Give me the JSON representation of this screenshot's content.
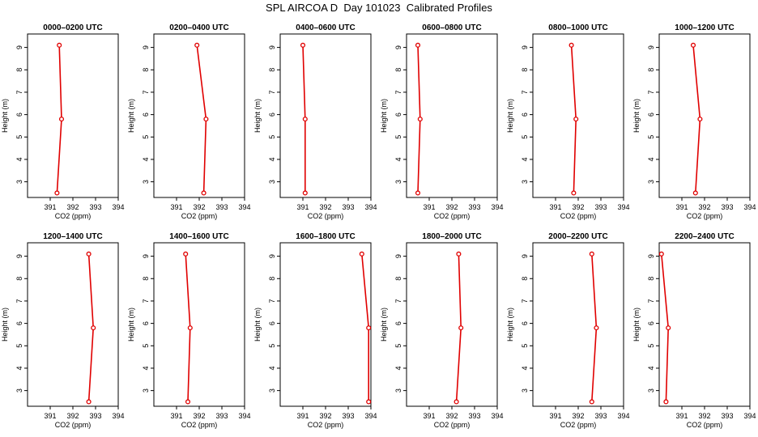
{
  "figure": {
    "title": "SPL AIRCOA D  Day 101023  Calibrated Profiles"
  },
  "style": {
    "line_color": "#e00000",
    "axis_color": "#000000",
    "background": "#ffffff"
  },
  "chart_data": [
    {
      "type": "line",
      "title": "0000–0200 UTC",
      "xlabel": "CO2 (ppm)",
      "ylabel": "Height (m)",
      "xlim": [
        390,
        394
      ],
      "ylim": [
        2.3,
        9.6
      ],
      "xticks": [
        391,
        392,
        393,
        394
      ],
      "yticks": [
        3,
        4,
        5,
        6,
        7,
        8,
        9
      ],
      "grid": false,
      "series": [
        {
          "x": [
            391.3,
            391.5,
            391.4
          ],
          "y": [
            2.5,
            5.8,
            9.1
          ]
        }
      ]
    },
    {
      "type": "line",
      "title": "0200–0400 UTC",
      "xlabel": "CO2 (ppm)",
      "ylabel": "Height (m)",
      "xlim": [
        390,
        394
      ],
      "ylim": [
        2.3,
        9.6
      ],
      "xticks": [
        391,
        392,
        393,
        394
      ],
      "yticks": [
        3,
        4,
        5,
        6,
        7,
        8,
        9
      ],
      "grid": false,
      "series": [
        {
          "x": [
            392.2,
            392.3,
            391.9
          ],
          "y": [
            2.5,
            5.8,
            9.1
          ]
        }
      ]
    },
    {
      "type": "line",
      "title": "0400–0600 UTC",
      "xlabel": "CO2 (ppm)",
      "ylabel": "Height (m)",
      "xlim": [
        390,
        394
      ],
      "ylim": [
        2.3,
        9.6
      ],
      "xticks": [
        391,
        392,
        393,
        394
      ],
      "yticks": [
        3,
        4,
        5,
        6,
        7,
        8,
        9
      ],
      "grid": false,
      "series": [
        {
          "x": [
            391.1,
            391.1,
            391.0
          ],
          "y": [
            2.5,
            5.8,
            9.1
          ]
        }
      ]
    },
    {
      "type": "line",
      "title": "0600–0800 UTC",
      "xlabel": "CO2 (ppm)",
      "ylabel": "Height (m)",
      "xlim": [
        390,
        394
      ],
      "ylim": [
        2.3,
        9.6
      ],
      "xticks": [
        391,
        392,
        393,
        394
      ],
      "yticks": [
        3,
        4,
        5,
        6,
        7,
        8,
        9
      ],
      "grid": false,
      "series": [
        {
          "x": [
            390.5,
            390.6,
            390.5
          ],
          "y": [
            2.5,
            5.8,
            9.1
          ]
        }
      ]
    },
    {
      "type": "line",
      "title": "0800–1000 UTC",
      "xlabel": "CO2 (ppm)",
      "ylabel": "Height (m)",
      "xlim": [
        390,
        394
      ],
      "ylim": [
        2.3,
        9.6
      ],
      "xticks": [
        391,
        392,
        393,
        394
      ],
      "yticks": [
        3,
        4,
        5,
        6,
        7,
        8,
        9
      ],
      "grid": false,
      "series": [
        {
          "x": [
            391.8,
            391.9,
            391.7
          ],
          "y": [
            2.5,
            5.8,
            9.1
          ]
        }
      ]
    },
    {
      "type": "line",
      "title": "1000–1200 UTC",
      "xlabel": "CO2 (ppm)",
      "ylabel": "Height (m)",
      "xlim": [
        390,
        394
      ],
      "ylim": [
        2.3,
        9.6
      ],
      "xticks": [
        391,
        392,
        393,
        394
      ],
      "yticks": [
        3,
        4,
        5,
        6,
        7,
        8,
        9
      ],
      "grid": false,
      "series": [
        {
          "x": [
            391.6,
            391.8,
            391.5
          ],
          "y": [
            2.5,
            5.8,
            9.1
          ]
        }
      ]
    },
    {
      "type": "line",
      "title": "1200–1400 UTC",
      "xlabel": "CO2 (ppm)",
      "ylabel": "Height (m)",
      "xlim": [
        390,
        394
      ],
      "ylim": [
        2.3,
        9.6
      ],
      "xticks": [
        391,
        392,
        393,
        394
      ],
      "yticks": [
        3,
        4,
        5,
        6,
        7,
        8,
        9
      ],
      "grid": false,
      "series": [
        {
          "x": [
            392.7,
            392.9,
            392.7
          ],
          "y": [
            2.5,
            5.8,
            9.1
          ]
        }
      ]
    },
    {
      "type": "line",
      "title": "1400–1600 UTC",
      "xlabel": "CO2 (ppm)",
      "ylabel": "Height (m)",
      "xlim": [
        390,
        394
      ],
      "ylim": [
        2.3,
        9.6
      ],
      "xticks": [
        391,
        392,
        393,
        394
      ],
      "yticks": [
        3,
        4,
        5,
        6,
        7,
        8,
        9
      ],
      "grid": false,
      "series": [
        {
          "x": [
            391.5,
            391.6,
            391.4
          ],
          "y": [
            2.5,
            5.8,
            9.1
          ]
        }
      ]
    },
    {
      "type": "line",
      "title": "1600–1800 UTC",
      "xlabel": "CO2 (ppm)",
      "ylabel": "Height (m)",
      "xlim": [
        390,
        394
      ],
      "ylim": [
        2.3,
        9.6
      ],
      "xticks": [
        391,
        392,
        393,
        394
      ],
      "yticks": [
        3,
        4,
        5,
        6,
        7,
        8,
        9
      ],
      "grid": false,
      "series": [
        {
          "x": [
            393.9,
            393.9,
            393.6
          ],
          "y": [
            2.5,
            5.8,
            9.1
          ]
        }
      ]
    },
    {
      "type": "line",
      "title": "1800–2000 UTC",
      "xlabel": "CO2 (ppm)",
      "ylabel": "Height (m)",
      "xlim": [
        390,
        394
      ],
      "ylim": [
        2.3,
        9.6
      ],
      "xticks": [
        391,
        392,
        393,
        394
      ],
      "yticks": [
        3,
        4,
        5,
        6,
        7,
        8,
        9
      ],
      "grid": false,
      "series": [
        {
          "x": [
            392.2,
            392.4,
            392.3
          ],
          "y": [
            2.5,
            5.8,
            9.1
          ]
        }
      ]
    },
    {
      "type": "line",
      "title": "2000–2200 UTC",
      "xlabel": "CO2 (ppm)",
      "ylabel": "Height (m)",
      "xlim": [
        390,
        394
      ],
      "ylim": [
        2.3,
        9.6
      ],
      "xticks": [
        391,
        392,
        393,
        394
      ],
      "yticks": [
        3,
        4,
        5,
        6,
        7,
        8,
        9
      ],
      "grid": false,
      "series": [
        {
          "x": [
            392.6,
            392.8,
            392.6
          ],
          "y": [
            2.5,
            5.8,
            9.1
          ]
        }
      ]
    },
    {
      "type": "line",
      "title": "2200–2400 UTC",
      "xlabel": "CO2 (ppm)",
      "ylabel": "Height (m)",
      "xlim": [
        390,
        394
      ],
      "ylim": [
        2.3,
        9.6
      ],
      "xticks": [
        391,
        392,
        393,
        394
      ],
      "yticks": [
        3,
        4,
        5,
        6,
        7,
        8,
        9
      ],
      "grid": false,
      "series": [
        {
          "x": [
            390.3,
            390.4,
            390.1
          ],
          "y": [
            2.5,
            5.8,
            9.1
          ]
        }
      ]
    }
  ]
}
